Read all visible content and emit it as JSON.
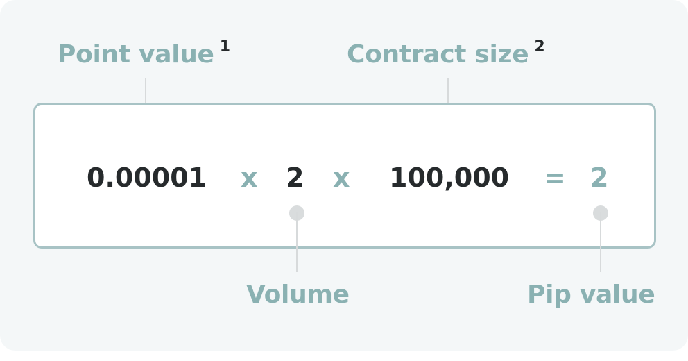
{
  "labels": {
    "point_value": "Point value",
    "point_value_note": "1",
    "contract_size": "Contract size",
    "contract_size_note": "2",
    "volume": "Volume",
    "pip_value": "Pip value"
  },
  "formula": {
    "point_value": "0.00001",
    "op1": "x",
    "volume": "2",
    "op2": "x",
    "contract_size": "100,000",
    "equals": "=",
    "result": "2"
  },
  "colors": {
    "accent": "#8ab1b2",
    "text_dark": "#262a2c",
    "box_border": "#a8c3c5",
    "connector": "#d9dcdd",
    "background": "#f4f7f8"
  }
}
